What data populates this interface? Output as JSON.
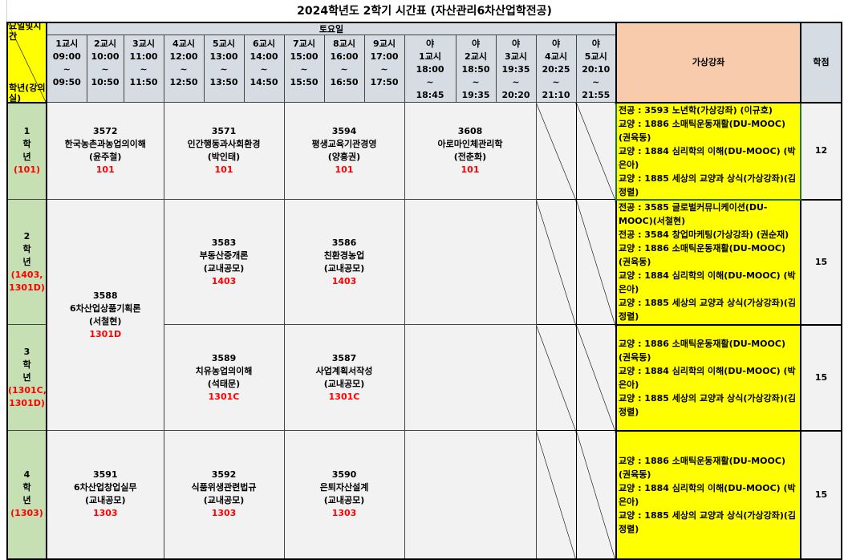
{
  "title": "2024학년도 2학기 시간표 (자산관리6차산업학전공)",
  "corner": {
    "top": "요일및시간",
    "bottom": "학년(강의실)"
  },
  "day": "토요일",
  "virtual_header": "가상강좌",
  "credit_header": "학점",
  "periods": [
    {
      "name": "1교시",
      "start": "09:00",
      "end": "09:50"
    },
    {
      "name": "2교시",
      "start": "10:00",
      "end": "10:50"
    },
    {
      "name": "3교시",
      "start": "11:00",
      "end": "11:50"
    },
    {
      "name": "4교시",
      "start": "12:00",
      "end": "12:50"
    },
    {
      "name": "5교시",
      "start": "13:00",
      "end": "13:50"
    },
    {
      "name": "6교시",
      "start": "14:00",
      "end": "14:50"
    },
    {
      "name": "7교시",
      "start": "15:00",
      "end": "15:50"
    },
    {
      "name": "8교시",
      "start": "16:00",
      "end": "16:50"
    },
    {
      "name": "9교시",
      "start": "17:00",
      "end": "17:50"
    },
    {
      "prefix": "야",
      "name": "1교시",
      "start": "18:00",
      "end": "18:45"
    },
    {
      "prefix": "야",
      "name": "2교시",
      "start": "18:50",
      "end": "19:35"
    },
    {
      "prefix": "야",
      "name": "3교시",
      "start": "19:35",
      "end": "20:20"
    },
    {
      "prefix": "야",
      "name": "4교시",
      "start": "20:25",
      "end": "21:10"
    },
    {
      "prefix": "야",
      "name": "5교시",
      "start": "20:10",
      "end": "21:55"
    }
  ],
  "tilde": "~",
  "years": [
    {
      "num": "1",
      "label": [
        "학",
        "년"
      ],
      "room": "(101)",
      "credits": "12",
      "virtual": [
        "전공 : 3593 노년학(가상강좌) (이규호)",
        "교양 : 1886 소매틱운동재활(DU-MOOC) (권육동)",
        "교양 : 1884 심리학의 이해(DU-MOOC) (박은아)",
        "교양 : 1885 세상의 교양과 상식(가상강좌)(김정렬)"
      ]
    },
    {
      "num": "2",
      "label": [
        "학",
        "년"
      ],
      "room": "(1403, 1301D)",
      "credits": "15",
      "virtual": [
        "전공 : 3585 글로벌커뮤니케이션(DU-MOOC)(서철현)",
        "전공 : 3584 창업마케팅(가상강좌) (권순재)",
        "교양 : 1886 소매틱운동재활(DU-MOOC) (권육동)",
        "교양 : 1884 심리학의 이해(DU-MOOC) (박은아)",
        "교양 : 1885 세상의 교양과 상식(가상강좌)(김정렬)"
      ]
    },
    {
      "num": "3",
      "label": [
        "학",
        "년"
      ],
      "room": "(1301C, 1301D)",
      "credits": "15",
      "virtual": [
        "교양 : 1886 소매틱운동재활(DU-MOOC) (권육동)",
        "교양 : 1884 심리학의 이해(DU-MOOC) (박은아)",
        "교양 : 1885 세상의 교양과 상식(가상강좌)(김정렬)"
      ]
    },
    {
      "num": "4",
      "label": [
        "학",
        "년"
      ],
      "room": "(1303)",
      "credits": "15",
      "virtual": [
        "교양 : 1886 소매틱운동재활(DU-MOOC) (권육동)",
        "교양 : 1884 심리학의 이해(DU-MOOC) (박은아)",
        "교양 : 1885 세상의 교양과 상식(가상강좌)(김정렬)"
      ]
    }
  ],
  "courses": {
    "c3572": {
      "code": "3572",
      "name": "한국농촌과농업의이해",
      "prof": "(윤주철)",
      "room": "101"
    },
    "c3571": {
      "code": "3571",
      "name": "인간행동과사회환경",
      "prof": "(박인태)",
      "room": "101"
    },
    "c3594": {
      "code": "3594",
      "name": "평생교육기관경영",
      "prof": "(양흥권)",
      "room": "101"
    },
    "c3608": {
      "code": "3608",
      "name": "아로마인체관리학",
      "prof": "(전춘화)",
      "room": "101"
    },
    "c3588": {
      "code": "3588",
      "name": "6차산업상품기획론",
      "prof": "(서철현)",
      "room": "1301D"
    },
    "c3583": {
      "code": "3583",
      "name": "부동산중개론",
      "prof": "(교내공모)",
      "room": "1403"
    },
    "c3586": {
      "code": "3586",
      "name": "친환경농업",
      "prof": "(교내공모)",
      "room": "1403"
    },
    "c3589": {
      "code": "3589",
      "name": "치유농업의이해",
      "prof": "(석태문)",
      "room": "1301C"
    },
    "c3587": {
      "code": "3587",
      "name": "사업계획서작성",
      "prof": "(교내공모)",
      "room": "1301C"
    },
    "c3591": {
      "code": "3591",
      "name": "6차산업창업실무",
      "prof": "(교내공모)",
      "room": "1303"
    },
    "c3592": {
      "code": "3592",
      "name": "식품위생관련법규",
      "prof": "(교내공모)",
      "room": "1303"
    },
    "c3590": {
      "code": "3590",
      "name": "은퇴자산설계",
      "prof": "(교내공모)",
      "room": "1303"
    }
  },
  "colors": {
    "header": "#d6dce4",
    "year": "#c6e0b4",
    "virtual": "#ffff00",
    "virtual_header": "#f8cbad",
    "room": "#ff0000",
    "cell": "#f2f2f2"
  }
}
